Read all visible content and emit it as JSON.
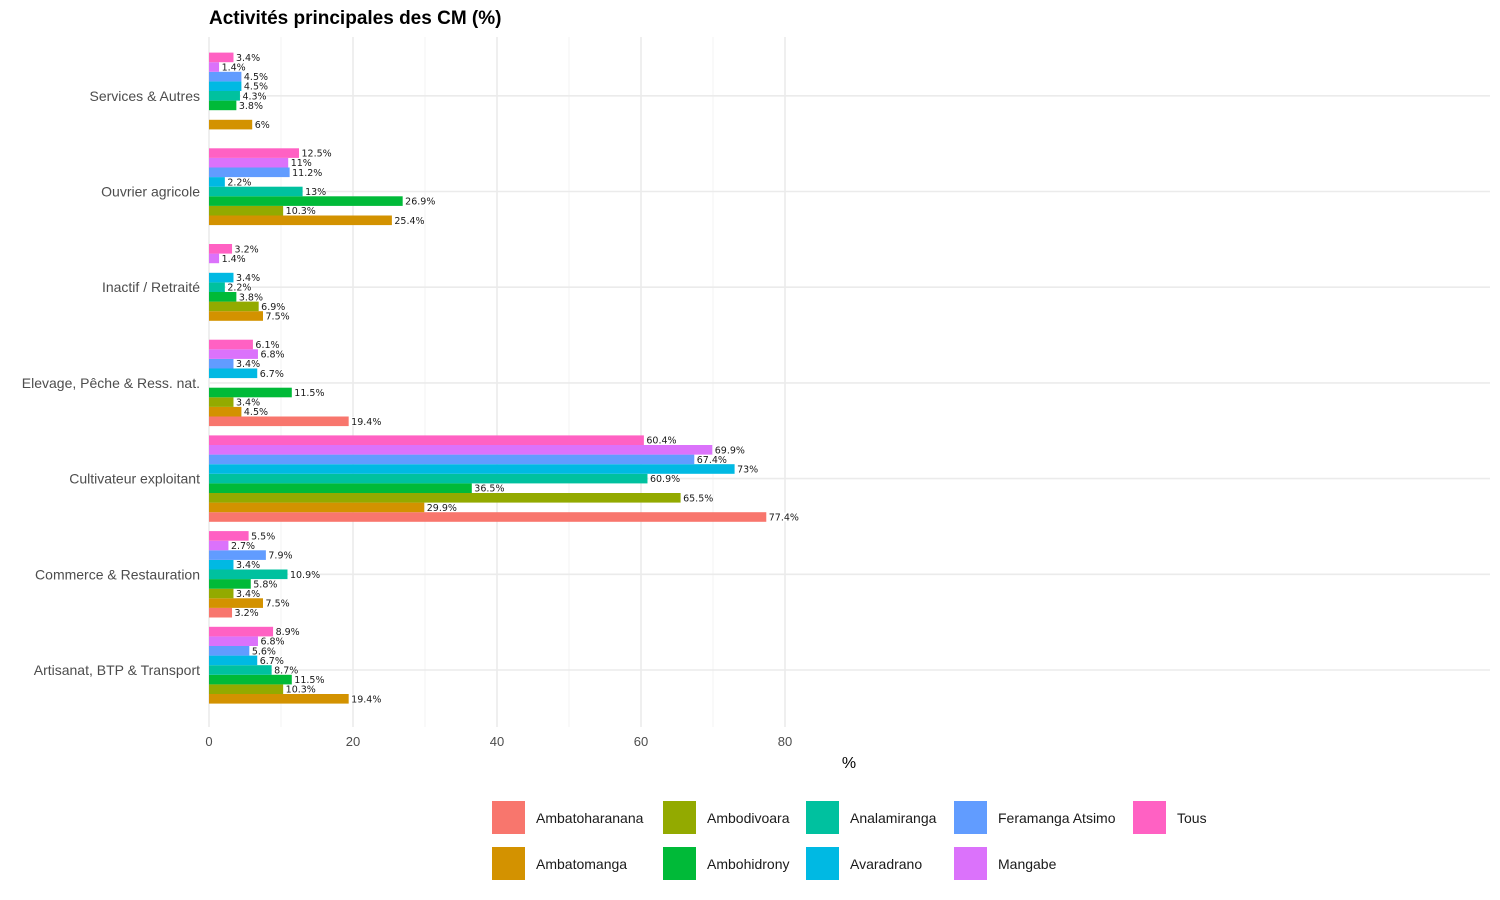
{
  "chart_data": {
    "type": "bar",
    "orientation": "horizontal",
    "title": "Activités principales des CM (%)",
    "xlabel": "%",
    "ylabel": "",
    "xlim": [
      0,
      89
    ],
    "xticks": [
      0,
      20,
      40,
      60,
      80
    ],
    "grid": true,
    "legend_position": "bottom",
    "value_suffix": "%",
    "categories": [
      "Artisanat, BTP & Transport",
      "Commerce & Restauration",
      "Cultivateur exploitant",
      "Elevage, Pêche & Ress. nat.",
      "Inactif / Retraité",
      "Ouvrier agricole",
      "Services & Autres"
    ],
    "series": [
      {
        "name": "Ambatoharanana",
        "color": "#F8766D",
        "values": [
          null,
          3.2,
          77.4,
          19.4,
          null,
          null,
          null
        ]
      },
      {
        "name": "Ambatomanga",
        "color": "#D39200",
        "values": [
          19.4,
          7.5,
          29.9,
          4.5,
          7.5,
          25.4,
          6
        ]
      },
      {
        "name": "Ambodivoara",
        "color": "#93AA00",
        "values": [
          10.3,
          3.4,
          65.5,
          3.4,
          6.9,
          10.3,
          null
        ]
      },
      {
        "name": "Ambohidrony",
        "color": "#00BA38",
        "values": [
          11.5,
          5.8,
          36.5,
          11.5,
          3.8,
          26.9,
          3.8
        ]
      },
      {
        "name": "Analamiranga",
        "color": "#00C19F",
        "values": [
          8.7,
          10.9,
          60.9,
          null,
          2.2,
          13,
          4.3
        ]
      },
      {
        "name": "Avaradrano",
        "color": "#00B9E3",
        "values": [
          6.7,
          3.4,
          73,
          6.7,
          3.4,
          2.2,
          4.5
        ]
      },
      {
        "name": "Feramanga Atsimo",
        "color": "#619CFF",
        "values": [
          5.6,
          7.9,
          67.4,
          3.4,
          null,
          11.2,
          4.5
        ]
      },
      {
        "name": "Mangabe",
        "color": "#DB72FB",
        "values": [
          6.8,
          2.7,
          69.9,
          6.8,
          1.4,
          11,
          1.4
        ]
      },
      {
        "name": "Tous",
        "color": "#FF61C3",
        "values": [
          8.9,
          5.5,
          60.4,
          6.1,
          3.2,
          12.5,
          3.4
        ]
      }
    ],
    "legend": {
      "rows": [
        [
          "Ambatoharanana",
          "Ambodivoara",
          "Analamiranga",
          "Feramanga Atsimo",
          "Tous"
        ],
        [
          "Ambatomanga",
          "Ambohidrony",
          "Avaradrano",
          "Mangabe"
        ]
      ]
    }
  }
}
